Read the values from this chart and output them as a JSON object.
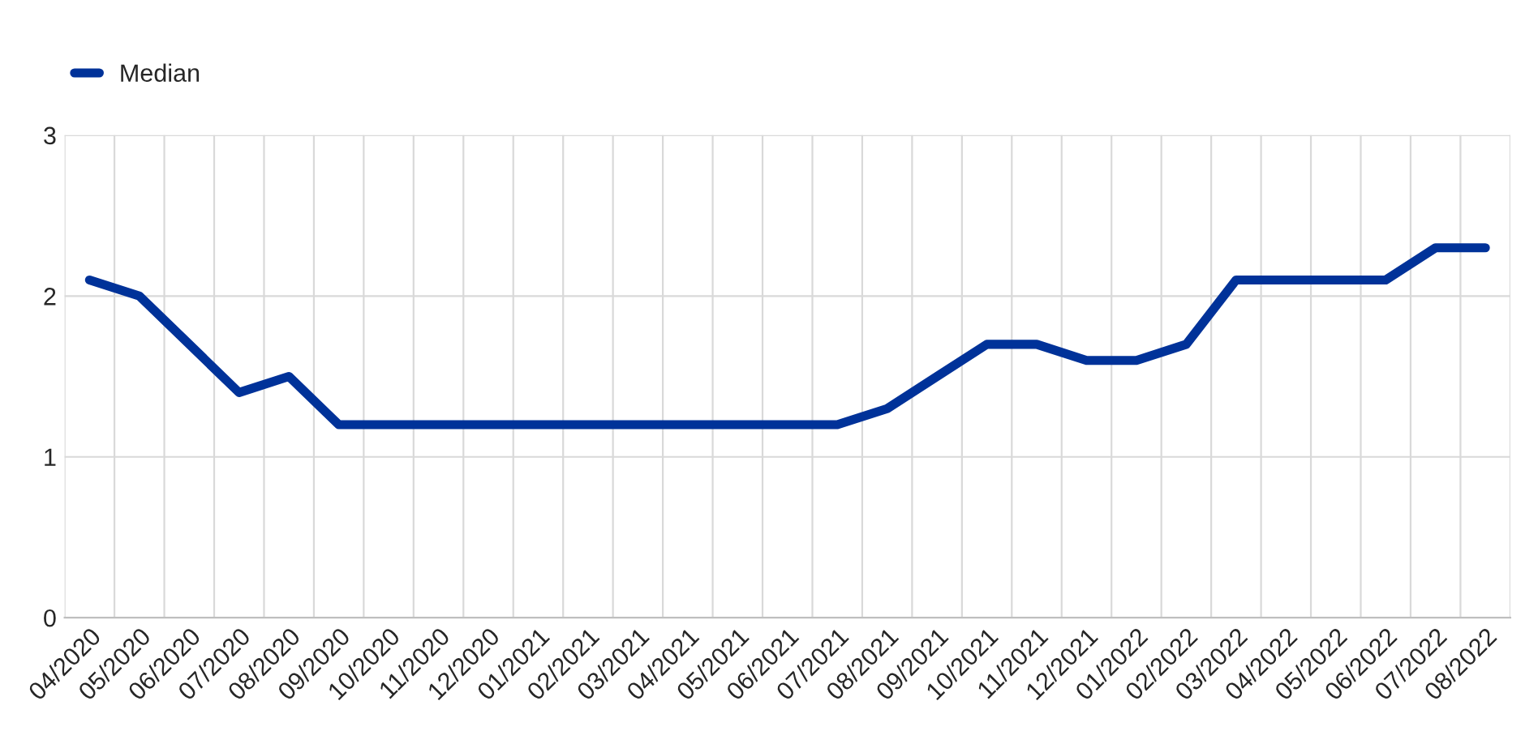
{
  "chart_data": {
    "type": "line",
    "categories": [
      "04/2020",
      "05/2020",
      "06/2020",
      "07/2020",
      "08/2020",
      "09/2020",
      "10/2020",
      "11/2020",
      "12/2020",
      "01/2021",
      "02/2021",
      "03/2021",
      "04/2021",
      "05/2021",
      "06/2021",
      "07/2021",
      "08/2021",
      "09/2021",
      "10/2021",
      "11/2021",
      "12/2021",
      "01/2022",
      "02/2022",
      "03/2022",
      "04/2022",
      "05/2022",
      "06/2022",
      "07/2022",
      "08/2022"
    ],
    "series": [
      {
        "name": "Median",
        "color": "#003299",
        "values": [
          2.1,
          2.0,
          1.7,
          1.4,
          1.5,
          1.2,
          1.2,
          1.2,
          1.2,
          1.2,
          1.2,
          1.2,
          1.2,
          1.2,
          1.2,
          1.2,
          1.3,
          1.5,
          1.7,
          1.7,
          1.6,
          1.6,
          1.7,
          2.1,
          2.1,
          2.1,
          2.1,
          2.3,
          2.3
        ]
      }
    ],
    "ylim": [
      0,
      3
    ],
    "yticks": [
      0,
      1,
      2,
      3
    ],
    "grid": true,
    "legend": "top left",
    "marker": "none",
    "line_style": "solid"
  }
}
